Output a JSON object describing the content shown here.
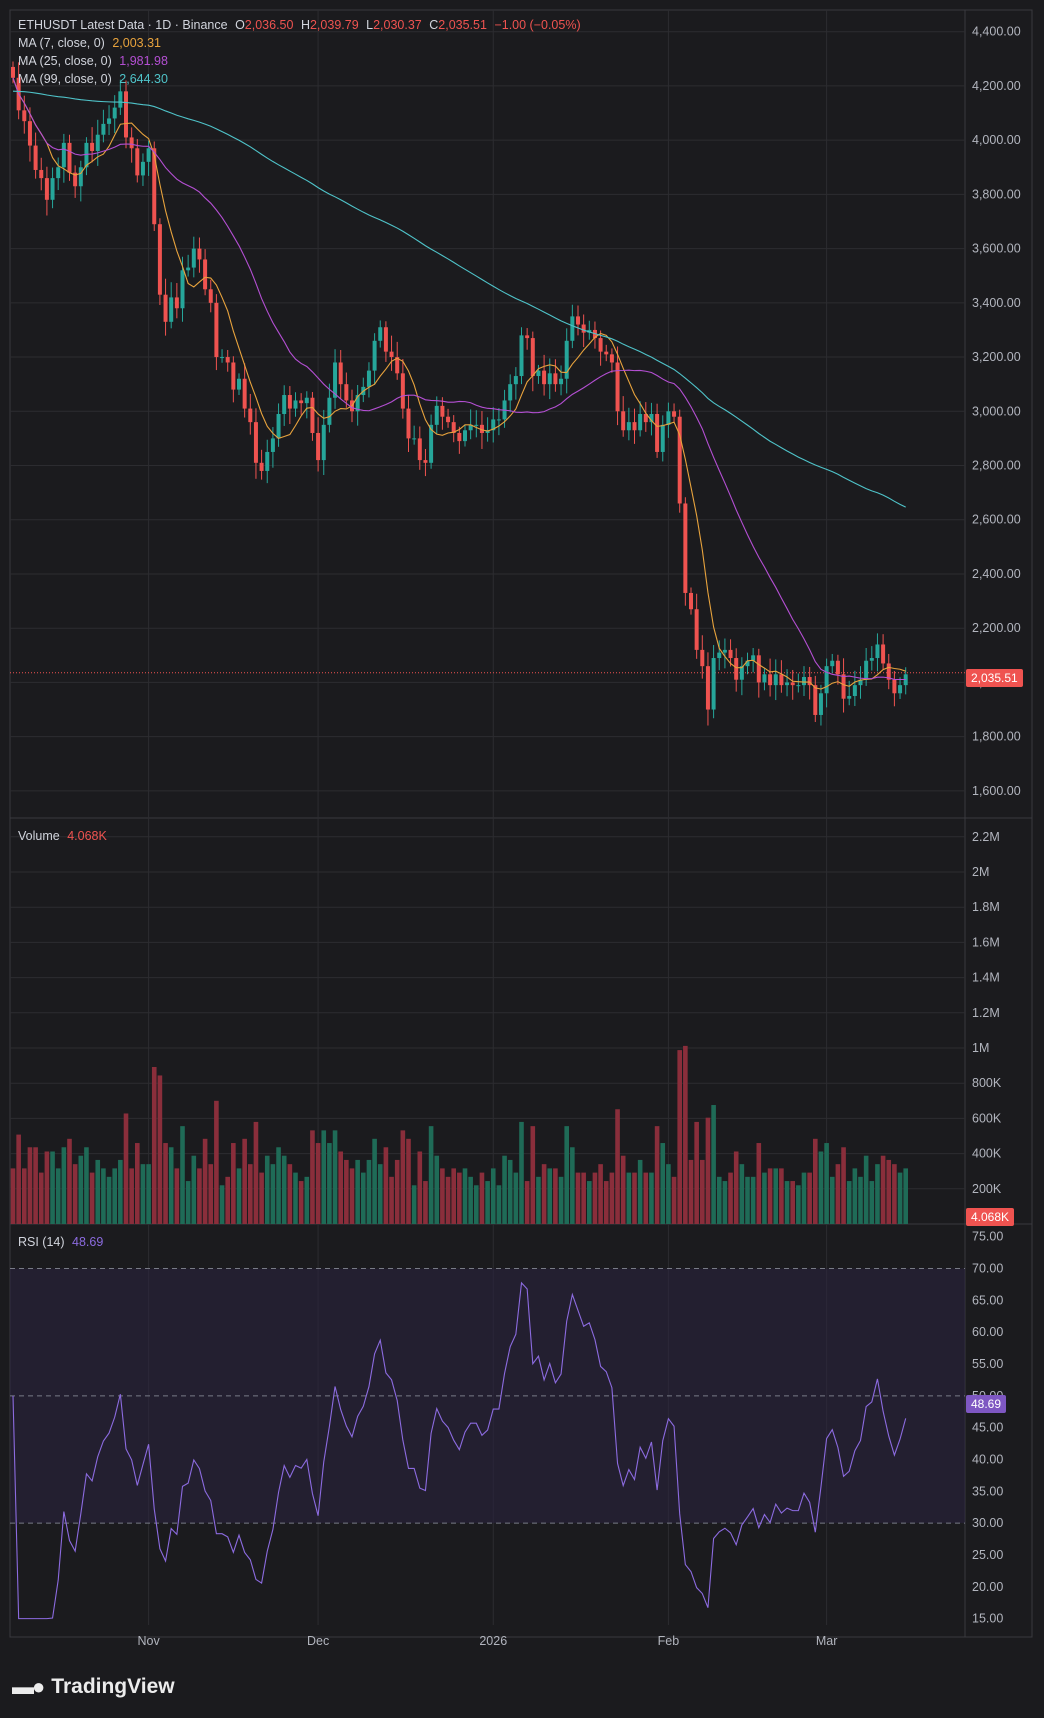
{
  "colors": {
    "background": "#1b1b1e",
    "grid": "#2c2c30",
    "up": "#26a69a",
    "down": "#ef5350",
    "volume_up": "#1f6b57",
    "volume_down": "#8a2e3b",
    "ma7": "#e8a33d",
    "ma25": "#b44fd3",
    "ma99": "#4fc3c9",
    "rsi_line": "#8c6be0",
    "rsi_band": "#2a2340",
    "text": "#b2b5be"
  },
  "header": {
    "symbol": "ETHUSDT Latest Data · 1D · Binance",
    "open_label": "O",
    "open": "2,036.50",
    "high_label": "H",
    "high": "2,039.79",
    "low_label": "L",
    "low": "2,030.37",
    "close_label": "C",
    "close": "2,035.51",
    "change": "−1.00 (−0.05%)"
  },
  "ma_legend": [
    {
      "label": "MA (7, close, 0)",
      "value": "2,003.31"
    },
    {
      "label": "MA (25, close, 0)",
      "value": "1,981.98"
    },
    {
      "label": "MA (99, close, 0)",
      "value": "2,644.30"
    }
  ],
  "volume_legend": {
    "label": "Volume",
    "value": "4.068K"
  },
  "rsi_legend": {
    "label": "RSI (14)",
    "value": "48.69"
  },
  "last_price_tag": "2,035.51",
  "last_volume_tag": "4.068K",
  "last_rsi_tag": "48.69",
  "brand": "TradingView",
  "chart_data": {
    "type": "candlestick",
    "title": "ETHUSDT Latest Data · 1D · Binance",
    "price_axis_ticks": [
      "4,400.00",
      "4,200.00",
      "4,000.00",
      "3,800.00",
      "3,600.00",
      "3,400.00",
      "3,200.00",
      "3,000.00",
      "2,800.00",
      "2,600.00",
      "2,400.00",
      "2,200.00",
      "2,000.00",
      "1,800.00",
      "1,600.00"
    ],
    "price_ylim": [
      1500,
      4480
    ],
    "volume_axis_ticks": [
      "2.2M",
      "2M",
      "1.8M",
      "1.6M",
      "1.4M",
      "1.2M",
      "1M",
      "800K",
      "600K",
      "400K",
      "200K"
    ],
    "volume_ylim": [
      0,
      2250000
    ],
    "rsi_axis_ticks": [
      "75.00",
      "70.00",
      "65.00",
      "60.00",
      "55.00",
      "50.00",
      "45.00",
      "40.00",
      "35.00",
      "30.00",
      "25.00",
      "20.00",
      "15.00"
    ],
    "rsi_ylim": [
      14,
      77
    ],
    "rsi_levels": [
      70,
      50,
      30
    ],
    "x_labels": [
      {
        "text": "Nov",
        "index": 24
      },
      {
        "text": "Dec",
        "index": 54
      },
      {
        "text": "2026",
        "index": 85
      },
      {
        "text": "Feb",
        "index": 116
      },
      {
        "text": "Mar",
        "index": 144
      }
    ],
    "closes": [
      4230,
      4110,
      4070,
      3980,
      3890,
      3860,
      3780,
      3860,
      3900,
      3990,
      3880,
      3830,
      3900,
      3990,
      3960,
      4020,
      4060,
      4080,
      4120,
      4180,
      4010,
      3970,
      3870,
      3920,
      3970,
      3690,
      3430,
      3330,
      3420,
      3380,
      3520,
      3530,
      3600,
      3560,
      3450,
      3400,
      3200,
      3200,
      3180,
      3080,
      3120,
      3010,
      2960,
      2810,
      2780,
      2850,
      2900,
      2990,
      3060,
      3010,
      3040,
      3030,
      3050,
      2920,
      2820,
      2950,
      3050,
      3180,
      3100,
      3040,
      3000,
      3060,
      3090,
      3150,
      3260,
      3310,
      3220,
      3200,
      3140,
      3010,
      2900,
      2900,
      2820,
      2810,
      2950,
      3020,
      2980,
      2960,
      2920,
      2890,
      2930,
      2950,
      2950,
      2920,
      2930,
      2970,
      2970,
      3040,
      3100,
      3130,
      3280,
      3270,
      3130,
      3150,
      3100,
      3140,
      3100,
      3120,
      3260,
      3350,
      3320,
      3290,
      3300,
      3270,
      3220,
      3210,
      3180,
      3000,
      2930,
      2960,
      2930,
      2990,
      2960,
      2990,
      2850,
      2950,
      3000,
      2980,
      2660,
      2330,
      2270,
      2120,
      2060,
      1900,
      2090,
      2110,
      2120,
      2090,
      2010,
      2060,
      2080,
      2100,
      2000,
      2030,
      1990,
      2030,
      1990,
      2000,
      1990,
      1990,
      2020,
      1990,
      1880,
      1960,
      2060,
      2080,
      2030,
      1940,
      1950,
      1990,
      2010,
      2080,
      2090,
      2140,
      2070,
      2010,
      1960,
      1990,
      2030
    ]
  }
}
